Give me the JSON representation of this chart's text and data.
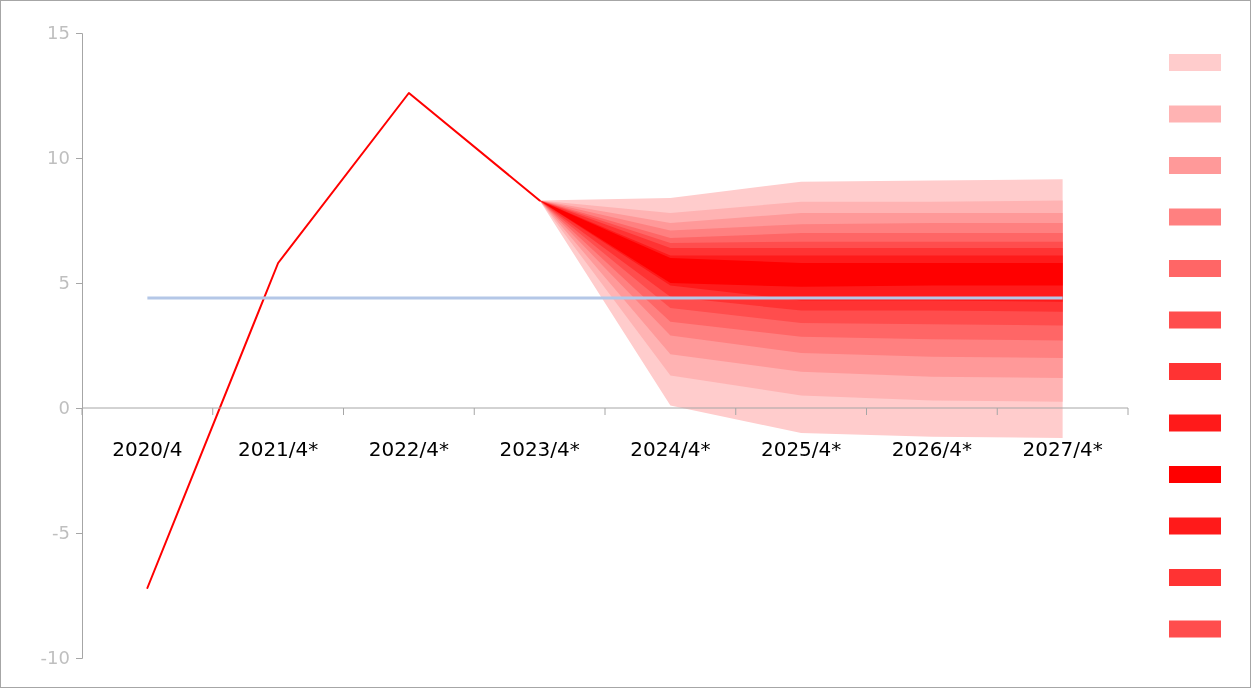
{
  "chart_data": {
    "type": "line",
    "categories": [
      "2020/4",
      "2021/4*",
      "2022/4*",
      "2023/4*",
      "2024/4*",
      "2025/4*",
      "2026/4*",
      "2027/4*"
    ],
    "ylim": [
      -10,
      15
    ],
    "yticks": [
      -10,
      -5,
      0,
      5,
      10,
      15
    ],
    "series": [
      {
        "type": "area",
        "color": "#ffcccc",
        "values": [
          null,
          null,
          null,
          null,
          null,
          null,
          null,
          null
        ],
        "lower": [
          null,
          null,
          null,
          8.3,
          0.1,
          -1.0,
          -1.15,
          -1.2
        ],
        "upper": [
          null,
          null,
          null,
          8.3,
          8.4,
          9.05,
          9.1,
          9.15
        ]
      },
      {
        "type": "area",
        "color": "#ffb3b3",
        "values": [
          null,
          null,
          null,
          null,
          null,
          null,
          null,
          null
        ],
        "lower": [
          null,
          null,
          null,
          8.3,
          1.3,
          0.5,
          0.3,
          0.25
        ],
        "upper": [
          null,
          null,
          null,
          8.3,
          7.8,
          8.25,
          8.25,
          8.3
        ]
      },
      {
        "type": "area",
        "color": "#ff9999",
        "values": [
          null,
          null,
          null,
          null,
          null,
          null,
          null,
          null
        ],
        "lower": [
          null,
          null,
          null,
          8.3,
          2.15,
          1.45,
          1.25,
          1.2
        ],
        "upper": [
          null,
          null,
          null,
          8.3,
          7.4,
          7.8,
          7.8,
          7.8
        ]
      },
      {
        "type": "area",
        "color": "#ff8080",
        "values": [
          null,
          null,
          null,
          null,
          null,
          null,
          null,
          null
        ],
        "lower": [
          null,
          null,
          null,
          8.3,
          2.9,
          2.2,
          2.05,
          2.0
        ],
        "upper": [
          null,
          null,
          null,
          8.3,
          7.1,
          7.35,
          7.4,
          7.4
        ]
      },
      {
        "type": "area",
        "color": "#ff6666",
        "values": [
          null,
          null,
          null,
          null,
          null,
          null,
          null,
          null
        ],
        "lower": [
          null,
          null,
          null,
          8.3,
          3.45,
          2.85,
          2.75,
          2.7
        ],
        "upper": [
          null,
          null,
          null,
          8.3,
          6.8,
          7.0,
          7.0,
          7.0
        ]
      },
      {
        "type": "area",
        "color": "#ff4d4d",
        "values": [
          null,
          null,
          null,
          null,
          null,
          null,
          null,
          null
        ],
        "lower": [
          null,
          null,
          null,
          8.3,
          4.0,
          3.4,
          3.35,
          3.3
        ],
        "upper": [
          null,
          null,
          null,
          8.3,
          6.6,
          6.65,
          6.65,
          6.65
        ]
      },
      {
        "type": "area",
        "color": "#ff3333",
        "values": [
          null,
          null,
          null,
          null,
          null,
          null,
          null,
          null
        ],
        "lower": [
          null,
          null,
          null,
          8.3,
          4.45,
          3.9,
          3.9,
          3.85
        ],
        "upper": [
          null,
          null,
          null,
          8.3,
          6.4,
          6.4,
          6.4,
          6.4
        ]
      },
      {
        "type": "area",
        "color": "#ff1a1a",
        "values": [
          null,
          null,
          null,
          null,
          null,
          null,
          null,
          null
        ],
        "lower": [
          null,
          null,
          null,
          8.3,
          4.9,
          4.3,
          4.3,
          4.25
        ],
        "upper": [
          null,
          null,
          null,
          8.3,
          6.1,
          6.1,
          6.1,
          6.1
        ]
      },
      {
        "type": "area",
        "color": "#ff0000",
        "values": [
          null,
          null,
          null,
          null,
          null,
          null,
          null,
          null
        ],
        "lower": [
          null,
          null,
          null,
          8.3,
          5.0,
          4.85,
          4.9,
          4.9
        ],
        "upper": [
          null,
          null,
          null,
          8.3,
          6.0,
          5.8,
          5.8,
          5.8
        ]
      },
      {
        "color": "#ff0000",
        "values": [
          -7.2,
          5.8,
          12.6,
          8.3,
          null,
          null,
          null,
          null
        ]
      }
    ],
    "ref_lines": [
      {
        "axis": "y",
        "value": 4.4,
        "color": "#b4c7e7"
      }
    ]
  }
}
